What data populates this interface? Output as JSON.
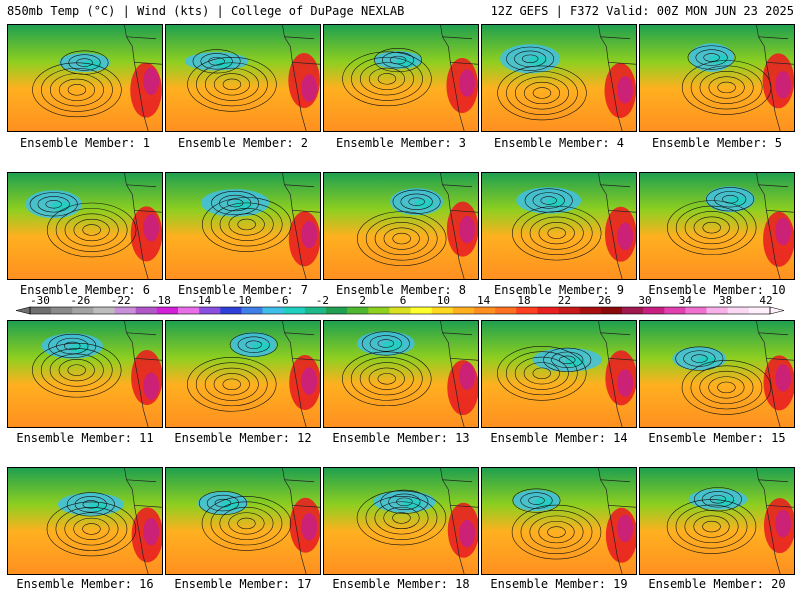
{
  "header": {
    "left": "850mb Temp (°C) | Wind (kts) | College of DuPage NEXLAB",
    "right": "12Z GEFS | F372 Valid: 00Z MON JUN 23 2025"
  },
  "members": [
    {
      "label": "Ensemble Member: 1"
    },
    {
      "label": "Ensemble Member: 2"
    },
    {
      "label": "Ensemble Member: 3"
    },
    {
      "label": "Ensemble Member: 4"
    },
    {
      "label": "Ensemble Member: 5"
    },
    {
      "label": "Ensemble Member: 6"
    },
    {
      "label": "Ensemble Member: 7"
    },
    {
      "label": "Ensemble Member: 8"
    },
    {
      "label": "Ensemble Member: 9"
    },
    {
      "label": "Ensemble Member: 10"
    },
    {
      "label": "Ensemble Member: 11"
    },
    {
      "label": "Ensemble Member: 12"
    },
    {
      "label": "Ensemble Member: 13"
    },
    {
      "label": "Ensemble Member: 14"
    },
    {
      "label": "Ensemble Member: 15"
    },
    {
      "label": "Ensemble Member: 16"
    },
    {
      "label": "Ensemble Member: 17"
    },
    {
      "label": "Ensemble Member: 18"
    },
    {
      "label": "Ensemble Member: 19"
    },
    {
      "label": "Ensemble Member: 20"
    }
  ],
  "colorbar": {
    "ticks": [
      "-30",
      "-26",
      "-22",
      "-18",
      "-14",
      "-10",
      "-6",
      "-2",
      "2",
      "6",
      "10",
      "14",
      "18",
      "22",
      "26",
      "30",
      "34",
      "38",
      "42"
    ],
    "colors": [
      "#6f6f6f",
      "#8a8a8a",
      "#a3a3a3",
      "#bdbdbd",
      "#c98fd8",
      "#b157c8",
      "#d21fd8",
      "#e86ee8",
      "#8a4fe0",
      "#2f3fd8",
      "#3f7fe8",
      "#3fbfe8",
      "#1fd0c0",
      "#1fb88a",
      "#20a050",
      "#4fb830",
      "#8fcf20",
      "#d8e020",
      "#ffff30",
      "#ffd820",
      "#ffb020",
      "#ff9020",
      "#ff7020",
      "#ff4020",
      "#e82020",
      "#c81818",
      "#a81010",
      "#8a0808",
      "#a01850",
      "#c82080",
      "#e040b0",
      "#f070d0",
      "#f8b0e8",
      "#fbd8f4",
      "#fff0fb"
    ]
  }
}
